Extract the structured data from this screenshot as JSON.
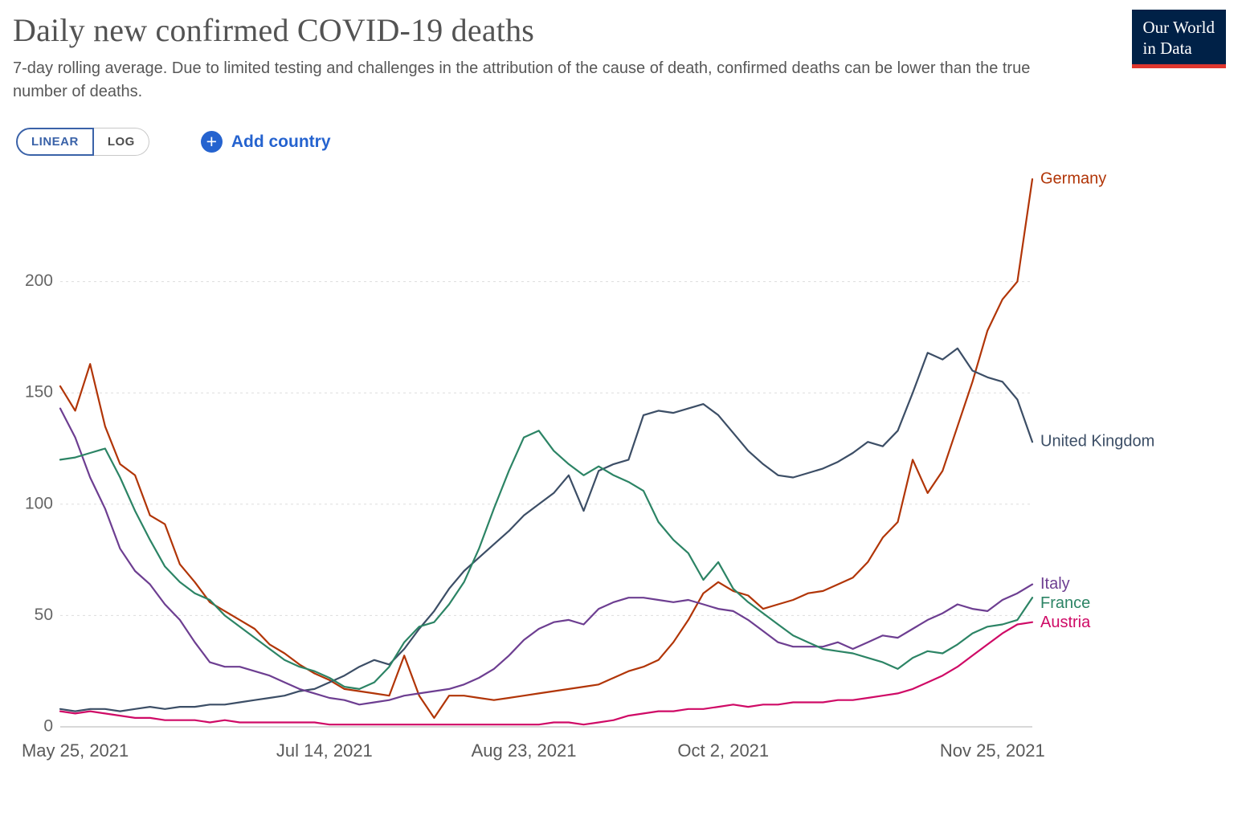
{
  "header": {
    "title": "Daily new confirmed COVID-19 deaths",
    "subtitle": "7-day rolling average. Due to limited testing and challenges in the attribution of the cause of death, confirmed deaths can be lower than the true number of deaths.",
    "logo_line1": "Our World",
    "logo_line2": "in Data"
  },
  "controls": {
    "linear_label": "LINEAR",
    "log_label": "LOG",
    "active_scale": "LINEAR",
    "add_country_label": "Add country",
    "plus_glyph": "+"
  },
  "colors": {
    "accent_blue": "#2563cf",
    "toggle_blue": "#3a62a8",
    "logo_navy": "#002147",
    "logo_red": "#e0362e",
    "grid_gray": "#dddddd",
    "axis_line_gray": "#b0b0b0",
    "y_tick_text": "#666666",
    "x_tick_text": "#5a5a5a"
  },
  "chart_data": {
    "type": "line",
    "title": "Daily new confirmed COVID-19 deaths",
    "xlabel": "",
    "ylabel": "",
    "grid": true,
    "legend_position": "line-end-labels",
    "y_ticks": [
      0,
      50,
      100,
      150,
      200
    ],
    "y_tick_labels": [
      "0",
      "50",
      "100",
      "150",
      "200"
    ],
    "y_range": [
      0,
      250
    ],
    "x_tick_labels": [
      "May 25, 2021",
      "Jul 14, 2021",
      "Aug 23, 2021",
      "Oct 2, 2021",
      "Nov 25, 2021"
    ],
    "x_tick_days": [
      3,
      53,
      93,
      133,
      187
    ],
    "x_range_days": [
      0,
      195
    ],
    "sample_step_days": 3,
    "series": [
      {
        "name": "Germany",
        "color": "#B13507",
        "values": [
          153,
          142,
          163,
          135,
          118,
          113,
          95,
          91,
          73,
          65,
          56,
          52,
          48,
          44,
          37,
          33,
          28,
          24,
          21,
          17,
          16,
          15,
          14,
          32,
          14,
          4,
          14,
          14,
          13,
          12,
          13,
          14,
          15,
          16,
          17,
          18,
          19,
          22,
          25,
          27,
          30,
          38,
          48,
          60,
          65,
          61,
          59,
          53,
          55,
          57,
          60,
          61,
          64,
          67,
          74,
          85,
          92,
          120,
          105,
          115,
          135,
          155,
          178,
          192,
          200,
          246
        ]
      },
      {
        "name": "United Kingdom",
        "color": "#3C4E66",
        "values": [
          8,
          7,
          8,
          8,
          7,
          8,
          9,
          8,
          9,
          9,
          10,
          10,
          11,
          12,
          13,
          14,
          16,
          17,
          20,
          23,
          27,
          30,
          28,
          35,
          44,
          52,
          62,
          70,
          76,
          82,
          88,
          95,
          100,
          105,
          113,
          97,
          115,
          118,
          120,
          140,
          142,
          141,
          143,
          145,
          140,
          132,
          124,
          118,
          113,
          112,
          114,
          116,
          119,
          123,
          128,
          126,
          133,
          150,
          168,
          165,
          170,
          160,
          157,
          155,
          147,
          128
        ]
      },
      {
        "name": "Italy",
        "color": "#6D3E91",
        "values": [
          143,
          130,
          112,
          98,
          80,
          70,
          64,
          55,
          48,
          38,
          29,
          27,
          27,
          25,
          23,
          20,
          17,
          15,
          13,
          12,
          10,
          11,
          12,
          14,
          15,
          16,
          17,
          19,
          22,
          26,
          32,
          39,
          44,
          47,
          48,
          46,
          53,
          56,
          58,
          58,
          57,
          56,
          57,
          55,
          53,
          52,
          48,
          43,
          38,
          36,
          36,
          36,
          38,
          35,
          38,
          41,
          40,
          44,
          48,
          51,
          55,
          53,
          52,
          57,
          60,
          64
        ]
      },
      {
        "name": "France",
        "color": "#2C8465",
        "values": [
          120,
          121,
          123,
          125,
          112,
          97,
          84,
          72,
          65,
          60,
          57,
          50,
          45,
          40,
          35,
          30,
          27,
          25,
          22,
          18,
          17,
          20,
          27,
          38,
          45,
          47,
          55,
          65,
          80,
          98,
          115,
          130,
          133,
          124,
          118,
          113,
          117,
          113,
          110,
          106,
          92,
          84,
          78,
          66,
          74,
          62,
          56,
          51,
          46,
          41,
          38,
          35,
          34,
          33,
          31,
          29,
          26,
          31,
          34,
          33,
          37,
          42,
          45,
          46,
          48,
          58
        ]
      },
      {
        "name": "Austria",
        "color": "#CF0A66",
        "values": [
          7,
          6,
          7,
          6,
          5,
          4,
          4,
          3,
          3,
          3,
          2,
          3,
          2,
          2,
          2,
          2,
          2,
          2,
          1,
          1,
          1,
          1,
          1,
          1,
          1,
          1,
          1,
          1,
          1,
          1,
          1,
          1,
          1,
          2,
          2,
          1,
          2,
          3,
          5,
          6,
          7,
          7,
          8,
          8,
          9,
          10,
          9,
          10,
          10,
          11,
          11,
          11,
          12,
          12,
          13,
          14,
          15,
          17,
          20,
          23,
          27,
          32,
          37,
          42,
          46,
          47
        ]
      }
    ]
  }
}
